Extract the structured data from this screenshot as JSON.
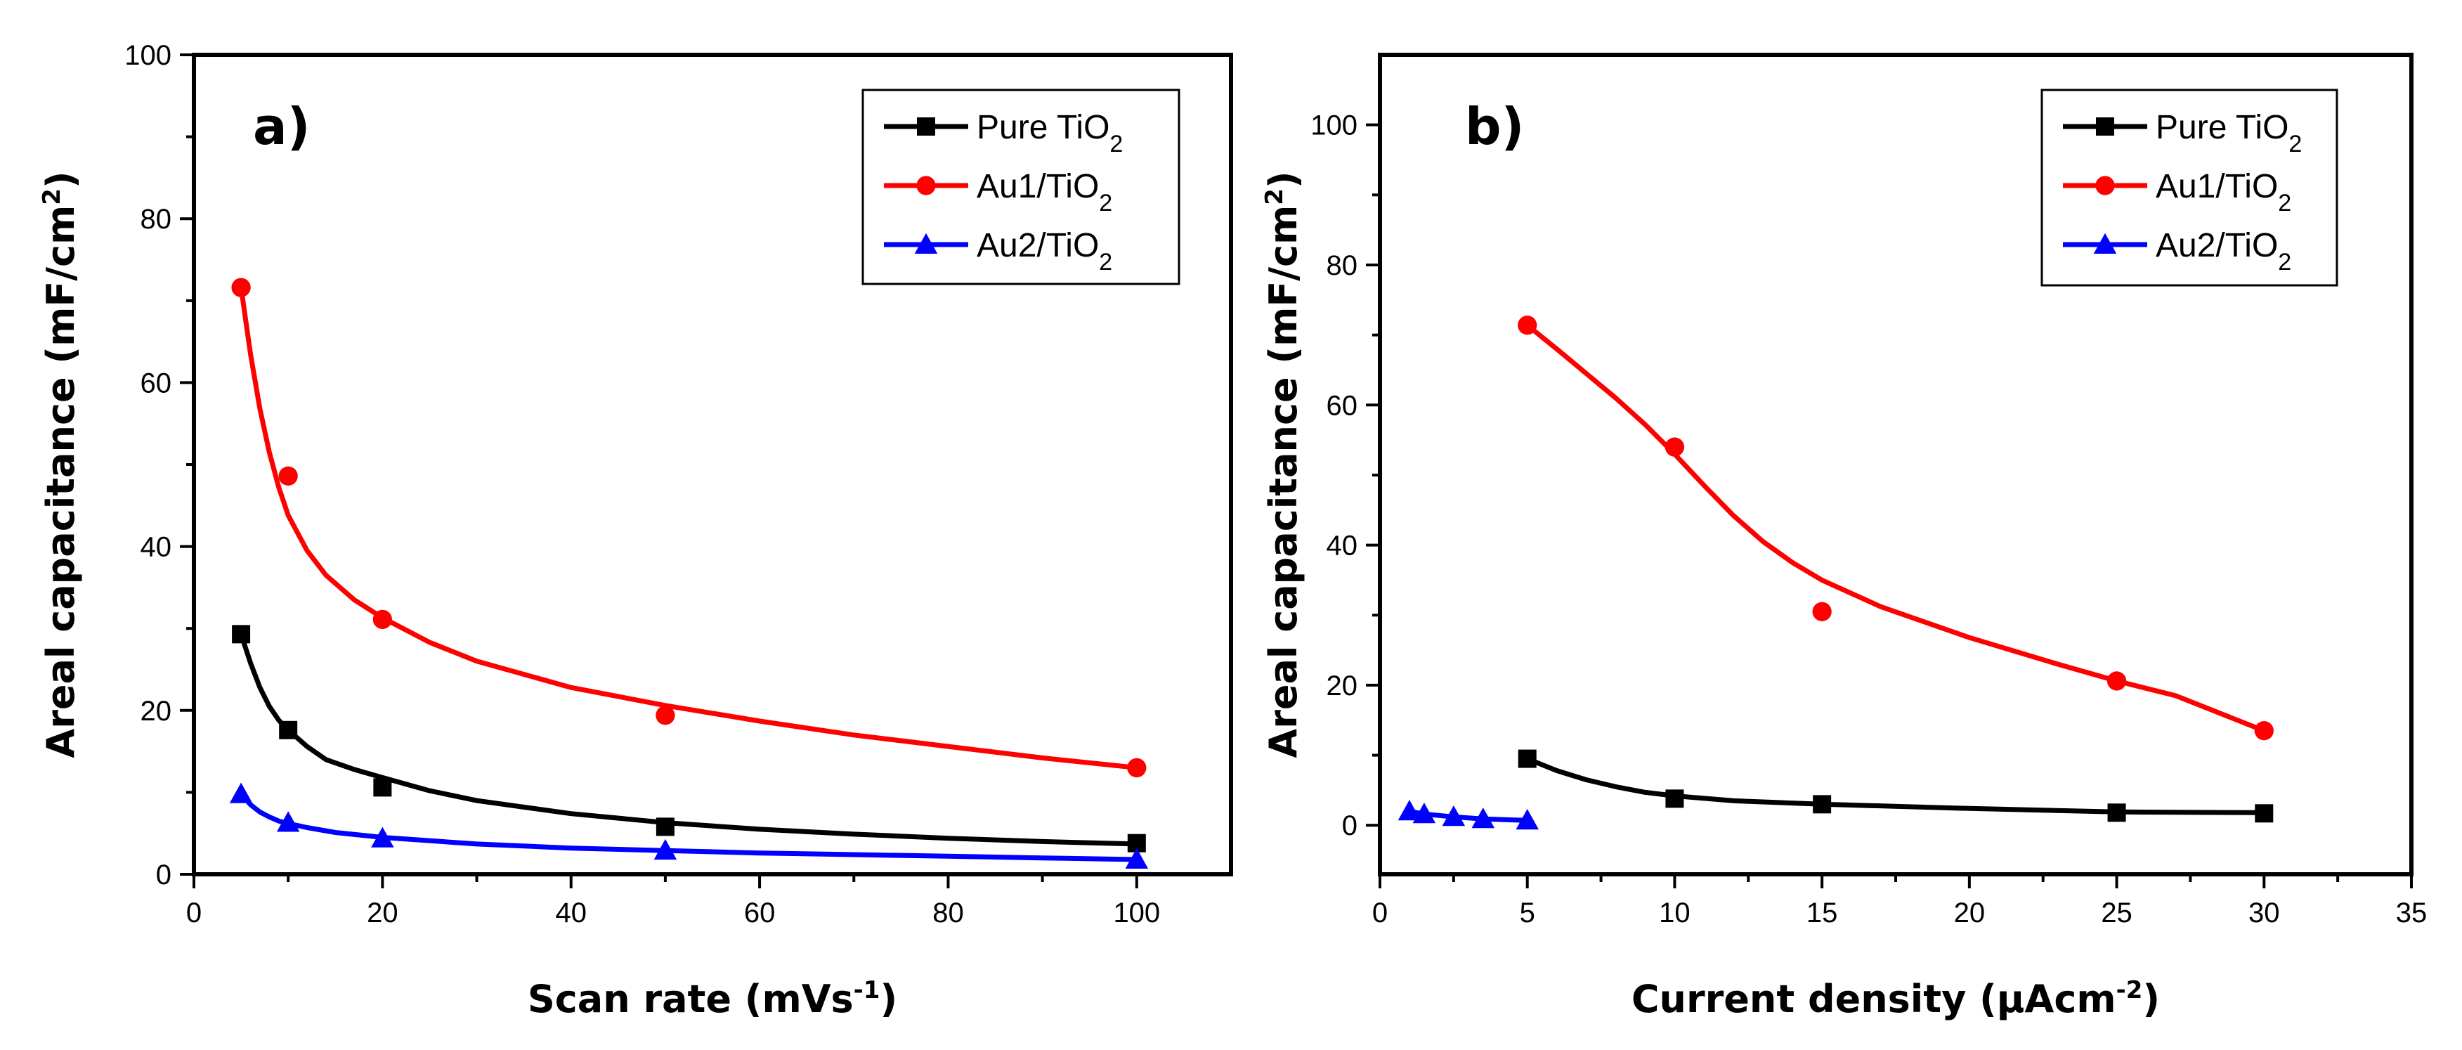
{
  "chart_data": [
    {
      "type": "line",
      "panel_label": "a)",
      "xlabel": "Scan rate (mVs",
      "xlabel_sup": "-1",
      "xlabel_end": ")",
      "ylabel": "Areal capacitance (mF/cm",
      "ylabel_sup": "2",
      "ylabel_end": ")",
      "xlim": [
        0,
        110
      ],
      "ylim": [
        0,
        100
      ],
      "xticks": [
        0,
        20,
        40,
        60,
        80,
        100
      ],
      "yticks": [
        0,
        20,
        40,
        60,
        80,
        100
      ],
      "legend_position": "top-right",
      "series": [
        {
          "name": "Pure TiO",
          "sub": "2",
          "color": "#000000",
          "marker": "square",
          "x": [
            5,
            10,
            20,
            50,
            100
          ],
          "y": [
            29.3,
            17.6,
            10.6,
            5.8,
            3.8
          ],
          "fit_x": [
            5,
            6,
            7,
            8,
            9,
            10,
            12,
            14,
            17,
            20,
            25,
            30,
            40,
            50,
            60,
            70,
            80,
            90,
            100
          ],
          "fit_y": [
            29.3,
            25.8,
            22.8,
            20.5,
            18.8,
            17.6,
            15.6,
            14.0,
            12.8,
            11.8,
            10.2,
            9.0,
            7.4,
            6.3,
            5.5,
            4.9,
            4.4,
            4.0,
            3.7
          ]
        },
        {
          "name": "Au1/TiO",
          "sub": "2",
          "color": "#ff0000",
          "marker": "circle",
          "x": [
            5,
            10,
            20,
            50,
            100
          ],
          "y": [
            71.6,
            48.6,
            31.1,
            19.4,
            13.0
          ],
          "fit_x": [
            5,
            6,
            7,
            8,
            9,
            10,
            12,
            14,
            17,
            20,
            25,
            30,
            40,
            50,
            60,
            70,
            80,
            90,
            100
          ],
          "fit_y": [
            71.6,
            63.5,
            56.8,
            51.5,
            47.2,
            43.8,
            39.5,
            36.5,
            33.5,
            31.3,
            28.3,
            26.0,
            22.8,
            20.6,
            18.7,
            17.0,
            15.6,
            14.2,
            13.0
          ]
        },
        {
          "name": "Au2/TiO",
          "sub": "2",
          "color": "#0000ff",
          "marker": "triangle",
          "x": [
            5,
            10,
            20,
            50,
            100
          ],
          "y": [
            9.8,
            6.3,
            4.4,
            2.9,
            1.8
          ],
          "fit_x": [
            5,
            6,
            7,
            8,
            9,
            10,
            12,
            15,
            20,
            30,
            40,
            50,
            60,
            70,
            80,
            90,
            100
          ],
          "fit_y": [
            9.8,
            8.5,
            7.6,
            7.0,
            6.5,
            6.2,
            5.7,
            5.1,
            4.5,
            3.7,
            3.2,
            2.9,
            2.6,
            2.4,
            2.2,
            2.0,
            1.8
          ]
        }
      ]
    },
    {
      "type": "line",
      "panel_label": "b)",
      "xlabel": "Current density (µAcm",
      "xlabel_sup": "-2",
      "xlabel_end": ")",
      "ylabel": "Areal capacitance (mF/cm",
      "ylabel_sup": "2",
      "ylabel_end": ")",
      "xlim": [
        0,
        35
      ],
      "ylim": [
        -7,
        110
      ],
      "xticks": [
        0,
        5,
        10,
        15,
        20,
        25,
        30,
        35
      ],
      "yticks": [
        0,
        20,
        40,
        60,
        80,
        100
      ],
      "legend_position": "top-right",
      "series": [
        {
          "name": "Pure TiO",
          "sub": "2",
          "color": "#000000",
          "marker": "square",
          "x": [
            5,
            10,
            15,
            25,
            30
          ],
          "y": [
            9.5,
            3.8,
            3.0,
            1.8,
            1.7
          ],
          "fit_x": [
            5,
            6,
            7,
            8,
            9,
            10,
            12,
            15,
            20,
            25,
            30
          ],
          "fit_y": [
            9.5,
            7.8,
            6.5,
            5.5,
            4.7,
            4.2,
            3.5,
            3.0,
            2.4,
            1.9,
            1.8
          ]
        },
        {
          "name": "Au1/TiO",
          "sub": "2",
          "color": "#ff0000",
          "marker": "circle",
          "x": [
            5,
            10,
            15,
            25,
            30
          ],
          "y": [
            71.4,
            54.0,
            30.5,
            20.6,
            13.5
          ],
          "fit_x": [
            5,
            6,
            7,
            8,
            9,
            10,
            11,
            12,
            13,
            14,
            15,
            17,
            20,
            23,
            25,
            27,
            30
          ],
          "fit_y": [
            71.4,
            68.0,
            64.5,
            61.0,
            57.2,
            53.0,
            48.5,
            44.2,
            40.5,
            37.5,
            35.0,
            31.2,
            26.8,
            23.0,
            20.6,
            18.5,
            13.5
          ]
        },
        {
          "name": "Au2/TiO",
          "sub": "2",
          "color": "#0000ff",
          "marker": "triangle",
          "x": [
            1,
            1.5,
            2.5,
            3.5,
            5
          ],
          "y": [
            2.0,
            1.6,
            1.2,
            0.9,
            0.7
          ],
          "fit_x": [
            1,
            1.5,
            2.5,
            3.5,
            5
          ],
          "fit_y": [
            2.0,
            1.6,
            1.2,
            0.9,
            0.7
          ]
        }
      ]
    }
  ]
}
